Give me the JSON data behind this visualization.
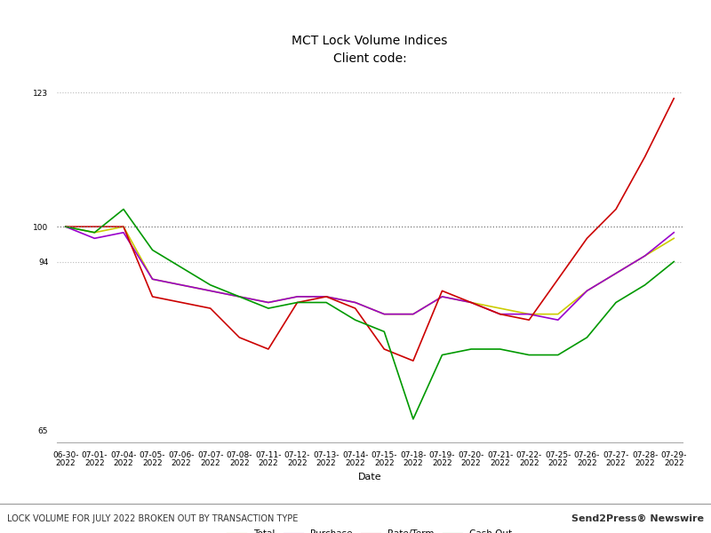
{
  "title": "MCT Lock Volume Indices",
  "subtitle": "Client code:",
  "xlabel": "Date",
  "xlabels": [
    "06-30-\n2022",
    "07-01-\n2022",
    "07-04-\n2022",
    "07-05-\n2022",
    "07-06-\n2022",
    "07-07-\n2022",
    "07-08-\n2022",
    "07-11-\n2022",
    "07-12-\n2022",
    "07-13-\n2022",
    "07-14-\n2022",
    "07-15-\n2022",
    "07-18-\n2022",
    "07-19-\n2022",
    "07-20-\n2022",
    "07-21-\n2022",
    "07-22-\n2022",
    "07-25-\n2022",
    "07-26-\n2022",
    "07-27-\n2022",
    "07-28-\n2022",
    "07-29-\n2022"
  ],
  "yticks": [
    65,
    94,
    100,
    123
  ],
  "ymin": 63,
  "ymax": 127,
  "series": {
    "Total": {
      "color": "#cccc00",
      "values": [
        100,
        99,
        100,
        91,
        90,
        89,
        88,
        87,
        88,
        88,
        87,
        85,
        85,
        88,
        87,
        86,
        85,
        85,
        89,
        92,
        95,
        98
      ]
    },
    "Purchase": {
      "color": "#9900cc",
      "values": [
        100,
        98,
        99,
        91,
        90,
        89,
        88,
        87,
        88,
        88,
        87,
        85,
        85,
        88,
        87,
        85,
        85,
        84,
        89,
        92,
        95,
        99
      ]
    },
    "Rate/Term": {
      "color": "#cc0000",
      "values": [
        100,
        100,
        100,
        88,
        87,
        86,
        81,
        79,
        87,
        88,
        86,
        79,
        77,
        89,
        87,
        85,
        84,
        91,
        98,
        103,
        112,
        122
      ]
    },
    "Cash Out": {
      "color": "#009900",
      "values": [
        100,
        99,
        103,
        96,
        93,
        90,
        88,
        86,
        87,
        87,
        84,
        82,
        67,
        78,
        79,
        79,
        78,
        78,
        81,
        87,
        90,
        94
      ]
    }
  },
  "hline_100_color": "#777777",
  "grid_94_color": "#bbbbbb",
  "grid_123_color": "#bbbbbb",
  "background_color": "#ffffff",
  "footer_bg_color": "#dddddd",
  "footer_text": "LOCK VOLUME FOR JULY 2022 BROKEN OUT BY TRANSACTION TYPE",
  "footer_right": "Send2Press® Newswire",
  "title_fontsize": 10,
  "subtitle_fontsize": 9,
  "axis_label_fontsize": 8,
  "tick_fontsize": 6.5,
  "legend_fontsize": 7.5
}
